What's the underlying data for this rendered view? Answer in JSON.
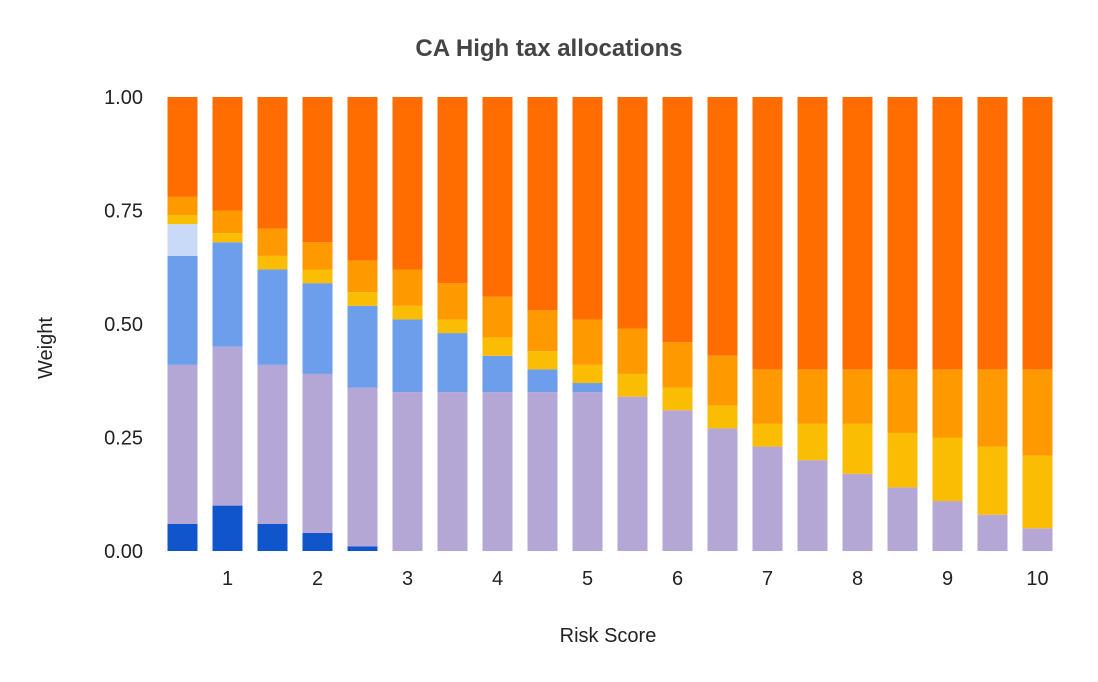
{
  "chart_data": {
    "type": "bar",
    "stacked": true,
    "title": "CA High tax allocations",
    "xlabel": "Risk Score",
    "ylabel": "Weight",
    "ylim": [
      0,
      1
    ],
    "y_ticks": [
      "0.00",
      "0.25",
      "0.50",
      "0.75",
      "1.00"
    ],
    "x": [
      0.5,
      1,
      1.5,
      2,
      2.5,
      3,
      3.5,
      4,
      4.5,
      5,
      5.5,
      6,
      6.5,
      7,
      7.5,
      8,
      8.5,
      9,
      9.5,
      10
    ],
    "x_tick_labels": [
      "1",
      "2",
      "3",
      "4",
      "5",
      "6",
      "7",
      "8",
      "9",
      "10"
    ],
    "grid": false,
    "legend": "none",
    "series": [
      {
        "color": "#1155cc",
        "values": [
          0.06,
          0.1,
          0.06,
          0.04,
          0.01,
          0,
          0,
          0,
          0,
          0,
          0,
          0,
          0,
          0,
          0,
          0,
          0,
          0,
          0,
          0
        ]
      },
      {
        "color": "#b4a7d6",
        "values": [
          0.35,
          0.35,
          0.35,
          0.35,
          0.35,
          0.35,
          0.35,
          0.35,
          0.35,
          0.35,
          0.34,
          0.31,
          0.27,
          0.23,
          0.2,
          0.17,
          0.14,
          0.11,
          0.08,
          0.05
        ]
      },
      {
        "color": "#6d9eeb",
        "values": [
          0.24,
          0.23,
          0.21,
          0.2,
          0.18,
          0.16,
          0.13,
          0.08,
          0.05,
          0.02,
          0,
          0,
          0,
          0,
          0,
          0,
          0,
          0,
          0,
          0
        ]
      },
      {
        "color": "#c9daf8",
        "values": [
          0.07,
          0,
          0,
          0,
          0,
          0,
          0,
          0,
          0,
          0,
          0,
          0,
          0,
          0,
          0,
          0,
          0,
          0,
          0,
          0
        ]
      },
      {
        "color": "#fbbc04",
        "values": [
          0.02,
          0.02,
          0.03,
          0.03,
          0.03,
          0.03,
          0.03,
          0.04,
          0.04,
          0.04,
          0.05,
          0.05,
          0.05,
          0.05,
          0.08,
          0.11,
          0.12,
          0.14,
          0.15,
          0.16
        ]
      },
      {
        "color": "#ff9900",
        "values": [
          0.04,
          0.05,
          0.06,
          0.06,
          0.07,
          0.08,
          0.08,
          0.09,
          0.09,
          0.1,
          0.1,
          0.1,
          0.11,
          0.12,
          0.12,
          0.12,
          0.14,
          0.15,
          0.17,
          0.19
        ]
      },
      {
        "color": "#ff6d01",
        "values": [
          0.22,
          0.25,
          0.29,
          0.32,
          0.36,
          0.38,
          0.41,
          0.44,
          0.47,
          0.49,
          0.51,
          0.54,
          0.57,
          0.6,
          0.6,
          0.6,
          0.6,
          0.6,
          0.6,
          0.6
        ]
      }
    ]
  }
}
